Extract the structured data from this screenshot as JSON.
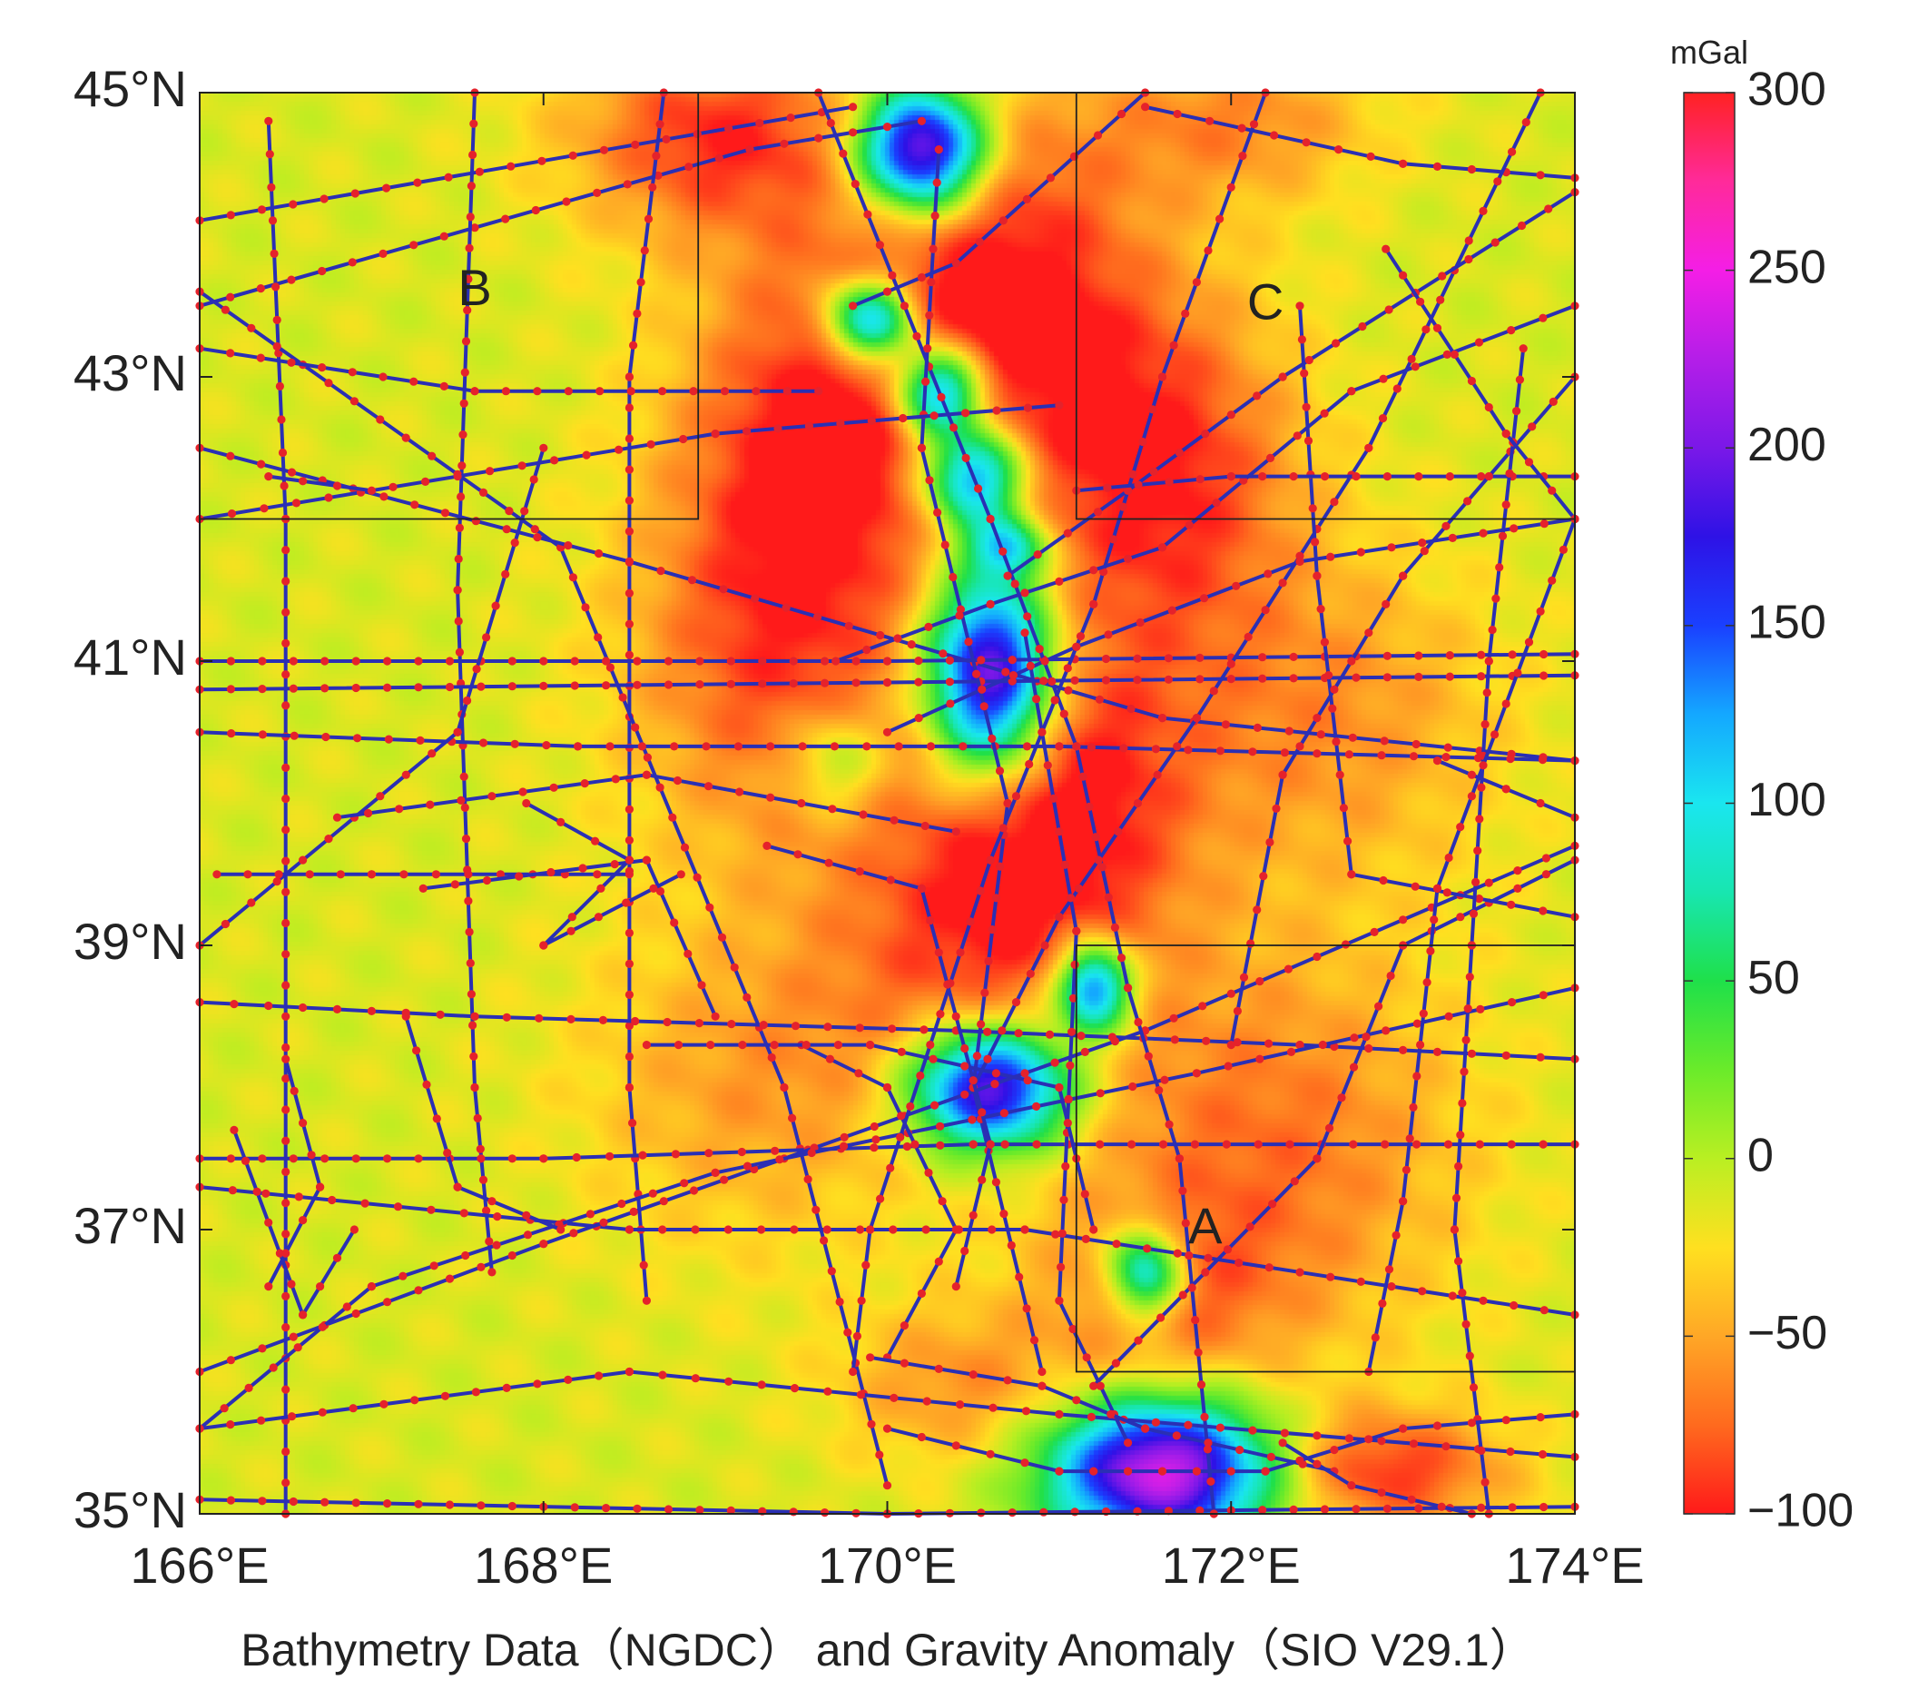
{
  "map": {
    "extent": {
      "lon_min": 166,
      "lon_max": 174,
      "lat_min": 35,
      "lat_max": 45
    },
    "x_ticks": [
      {
        "lon": 166,
        "label": "166°E"
      },
      {
        "lon": 168,
        "label": "168°E"
      },
      {
        "lon": 170,
        "label": "170°E"
      },
      {
        "lon": 172,
        "label": "172°E"
      },
      {
        "lon": 174,
        "label": "174°E"
      }
    ],
    "y_ticks": [
      {
        "lat": 45,
        "label": "45°N"
      },
      {
        "lat": 43,
        "label": "43°N"
      },
      {
        "lat": 41,
        "label": "41°N"
      },
      {
        "lat": 39,
        "label": "39°N"
      },
      {
        "lat": 37,
        "label": "37°N"
      },
      {
        "lat": 35,
        "label": "35°N"
      }
    ],
    "caption": "Bathymetry Data（NGDC） and Gravity Anomaly（SIO V29.1）",
    "track_color": "#2a2fb4",
    "point_color": "#e5222b",
    "regions": [
      {
        "label": "A",
        "lon_min": 171.1,
        "lon_max": 174.0,
        "lat_min": 36.0,
        "lat_max": 39.0,
        "label_lon": 171.85,
        "label_lat": 37.0
      },
      {
        "label": "B",
        "lon_min": 166.0,
        "lon_max": 168.9,
        "lat_min": 42.0,
        "lat_max": 45.0,
        "label_lon": 167.6,
        "label_lat": 43.6
      },
      {
        "label": "C",
        "lon_min": 171.1,
        "lon_max": 174.0,
        "lat_min": 42.0,
        "lat_max": 45.0,
        "label_lon": 172.2,
        "label_lat": 43.5
      }
    ],
    "tracks": [
      [
        [
          166.0,
          44.1
        ],
        [
          169.8,
          44.9
        ]
      ],
      [
        [
          166.0,
          43.5
        ],
        [
          169.2,
          44.6
        ],
        [
          170.2,
          44.8
        ]
      ],
      [
        [
          166.4,
          44.8
        ],
        [
          166.5,
          42.0
        ],
        [
          166.5,
          35.0
        ]
      ],
      [
        [
          167.6,
          45.0
        ],
        [
          167.5,
          41.5
        ],
        [
          167.6,
          38.0
        ],
        [
          167.7,
          36.7
        ]
      ],
      [
        [
          168.7,
          45.0
        ],
        [
          168.5,
          43.0
        ],
        [
          168.5,
          38.0
        ],
        [
          168.6,
          36.5
        ]
      ],
      [
        [
          166.0,
          43.6
        ],
        [
          168.1,
          41.8
        ],
        [
          169.4,
          38.0
        ],
        [
          170.0,
          35.2
        ]
      ],
      [
        [
          166.0,
          42.5
        ],
        [
          168.5,
          41.7
        ],
        [
          171.6,
          40.6
        ],
        [
          174.0,
          40.3
        ]
      ],
      [
        [
          166.0,
          41.0
        ],
        [
          170.0,
          41.0
        ],
        [
          174.0,
          41.05
        ]
      ],
      [
        [
          166.0,
          40.8
        ],
        [
          170.0,
          40.85
        ],
        [
          174.0,
          40.9
        ]
      ],
      [
        [
          166.0,
          40.5
        ],
        [
          168.2,
          40.4
        ],
        [
          171.0,
          40.4
        ],
        [
          174.0,
          40.3
        ]
      ],
      [
        [
          166.0,
          39.0
        ],
        [
          167.5,
          40.5
        ],
        [
          168.0,
          42.5
        ]
      ],
      [
        [
          166.1,
          39.5
        ],
        [
          167.0,
          39.5
        ],
        [
          168.5,
          39.5
        ]
      ],
      [
        [
          166.0,
          38.6
        ],
        [
          167.6,
          38.5
        ],
        [
          170.4,
          38.4
        ],
        [
          172.4,
          38.3
        ],
        [
          174.0,
          38.2
        ]
      ],
      [
        [
          166.0,
          37.5
        ],
        [
          168.0,
          37.5
        ],
        [
          170.5,
          37.6
        ],
        [
          174.0,
          37.6
        ]
      ],
      [
        [
          166.0,
          37.3
        ],
        [
          168.5,
          37.0
        ],
        [
          170.8,
          37.0
        ],
        [
          174.0,
          36.4
        ]
      ],
      [
        [
          166.0,
          36.0
        ],
        [
          168.0,
          36.9
        ],
        [
          171.5,
          38.4
        ],
        [
          174.0,
          39.7
        ]
      ],
      [
        [
          166.0,
          35.6
        ],
        [
          168.5,
          36.0
        ],
        [
          171.0,
          35.7
        ],
        [
          174.0,
          35.4
        ]
      ],
      [
        [
          166.0,
          35.1
        ],
        [
          170.0,
          35.0
        ],
        [
          174.0,
          35.05
        ]
      ],
      [
        [
          166.0,
          35.6
        ],
        [
          167.0,
          36.6
        ],
        [
          169.0,
          37.4
        ],
        [
          171.8,
          38.1
        ],
        [
          174.0,
          38.7
        ]
      ],
      [
        [
          171.2,
          35.9
        ],
        [
          172.5,
          37.5
        ],
        [
          173.0,
          39.0
        ],
        [
          174.0,
          39.6
        ]
      ],
      [
        [
          171.5,
          44.9
        ],
        [
          173.0,
          44.5
        ],
        [
          174.0,
          44.4
        ]
      ],
      [
        [
          171.5,
          45.0
        ],
        [
          170.4,
          43.8
        ],
        [
          169.8,
          43.5
        ]
      ],
      [
        [
          169.6,
          45.0
        ],
        [
          170.6,
          42.0
        ],
        [
          171.1,
          40.4
        ],
        [
          171.4,
          38.7
        ],
        [
          171.7,
          37.5
        ],
        [
          171.9,
          35.0
        ]
      ],
      [
        [
          170.3,
          44.6
        ],
        [
          170.2,
          42.5
        ],
        [
          170.7,
          40.0
        ],
        [
          170.5,
          38.0
        ],
        [
          170.9,
          36.0
        ]
      ],
      [
        [
          172.2,
          45.0
        ],
        [
          171.6,
          43.0
        ],
        [
          171.2,
          41.4
        ],
        [
          170.6,
          39.6
        ],
        [
          169.9,
          37.0
        ],
        [
          169.8,
          36.0
        ]
      ],
      [
        [
          173.8,
          45.0
        ],
        [
          172.8,
          42.5
        ],
        [
          171.8,
          40.6
        ],
        [
          171.0,
          39.2
        ],
        [
          170.5,
          38.0
        ]
      ],
      [
        [
          174.0,
          44.3
        ],
        [
          172.3,
          43.0
        ],
        [
          171.4,
          42.2
        ],
        [
          170.7,
          41.6
        ]
      ],
      [
        [
          172.4,
          43.5
        ],
        [
          172.5,
          41.6
        ],
        [
          172.7,
          39.5
        ],
        [
          174.0,
          39.2
        ]
      ],
      [
        [
          174.0,
          43.5
        ],
        [
          172.7,
          42.9
        ],
        [
          171.6,
          41.8
        ],
        [
          170.6,
          41.4
        ],
        [
          169.7,
          41.0
        ]
      ],
      [
        [
          174.0,
          42.0
        ],
        [
          172.4,
          41.7
        ],
        [
          171.1,
          41.1
        ],
        [
          170.0,
          40.5
        ]
      ],
      [
        [
          174.0,
          42.3
        ],
        [
          172.0,
          42.3
        ],
        [
          171.1,
          42.2
        ]
      ],
      [
        [
          174.0,
          43.0
        ],
        [
          173.0,
          41.6
        ],
        [
          172.3,
          40.2
        ],
        [
          172.0,
          38.3
        ]
      ],
      [
        [
          173.7,
          43.2
        ],
        [
          173.5,
          41.0
        ],
        [
          173.4,
          39.0
        ],
        [
          173.3,
          37.0
        ],
        [
          173.5,
          35.0
        ]
      ],
      [
        [
          172.9,
          43.9
        ],
        [
          173.6,
          42.6
        ],
        [
          174.0,
          42.0
        ]
      ],
      [
        [
          170.8,
          41.2
        ],
        [
          171.1,
          39.1
        ],
        [
          171.0,
          36.5
        ],
        [
          171.4,
          35.5
        ]
      ],
      [
        [
          169.3,
          39.7
        ],
        [
          170.2,
          39.4
        ],
        [
          170.6,
          37.6
        ],
        [
          170.4,
          36.6
        ]
      ],
      [
        [
          169.5,
          38.3
        ],
        [
          170.0,
          38.0
        ],
        [
          170.4,
          37.0
        ],
        [
          170.0,
          36.1
        ]
      ],
      [
        [
          166.2,
          37.7
        ],
        [
          166.6,
          36.4
        ],
        [
          166.9,
          37.0
        ]
      ],
      [
        [
          167.2,
          38.5
        ],
        [
          167.5,
          37.3
        ],
        [
          168.1,
          37.0
        ]
      ],
      [
        [
          169.9,
          36.1
        ],
        [
          170.9,
          35.9
        ],
        [
          171.5,
          35.6
        ],
        [
          172.6,
          35.3
        ]
      ],
      [
        [
          170.0,
          35.6
        ],
        [
          171.0,
          35.3
        ],
        [
          172.2,
          35.3
        ],
        [
          173.0,
          35.6
        ],
        [
          174.0,
          35.7
        ]
      ],
      [
        [
          172.3,
          35.5
        ],
        [
          172.7,
          35.2
        ],
        [
          173.4,
          35.0
        ]
      ],
      [
        [
          168.6,
          38.3
        ],
        [
          169.9,
          38.3
        ],
        [
          171.0,
          38.0
        ],
        [
          171.2,
          37.0
        ]
      ],
      [
        [
          167.3,
          39.4
        ],
        [
          168.6,
          39.6
        ],
        [
          169.0,
          38.5
        ]
      ],
      [
        [
          167.9,
          40.0
        ],
        [
          168.5,
          39.6
        ],
        [
          168.0,
          39.0
        ],
        [
          168.8,
          39.5
        ]
      ],
      [
        [
          166.8,
          39.9
        ],
        [
          168.6,
          40.2
        ],
        [
          170.4,
          39.8
        ]
      ],
      [
        [
          173.2,
          40.3
        ],
        [
          173.6,
          40.1
        ],
        [
          174.0,
          39.9
        ]
      ],
      [
        [
          166.0,
          42.0
        ],
        [
          169.0,
          42.6
        ],
        [
          171.0,
          42.8
        ]
      ],
      [
        [
          166.0,
          43.2
        ],
        [
          167.6,
          42.9
        ],
        [
          169.6,
          42.9
        ]
      ],
      [
        [
          166.4,
          42.3
        ],
        [
          167.0,
          42.2
        ]
      ],
      [
        [
          174.0,
          42.0
        ],
        [
          173.2,
          39.4
        ],
        [
          173.0,
          37.2
        ],
        [
          172.8,
          36.0
        ]
      ],
      [
        [
          166.5,
          38.2
        ],
        [
          166.7,
          37.3
        ],
        [
          166.4,
          36.6
        ]
      ]
    ]
  },
  "colorbar": {
    "unit": "mGal",
    "vmin": -100,
    "vmax": 300,
    "tick_labels": [
      {
        "value": 300,
        "label": "300"
      },
      {
        "value": 250,
        "label": "250"
      },
      {
        "value": 200,
        "label": "200"
      },
      {
        "value": 150,
        "label": "150"
      },
      {
        "value": 100,
        "label": "100"
      },
      {
        "value": 50,
        "label": "50"
      },
      {
        "value": 0,
        "label": "0"
      },
      {
        "value": -50,
        "label": "−50"
      },
      {
        "value": -100,
        "label": "−100"
      }
    ],
    "stops": [
      {
        "value": -100,
        "color": "#ff1a1a"
      },
      {
        "value": -75,
        "color": "#ff6a1e"
      },
      {
        "value": -50,
        "color": "#ffa726"
      },
      {
        "value": -25,
        "color": "#ffe020"
      },
      {
        "value": 0,
        "color": "#b9ef22"
      },
      {
        "value": 25,
        "color": "#6aeb2a"
      },
      {
        "value": 50,
        "color": "#1fe04a"
      },
      {
        "value": 75,
        "color": "#18e6b0"
      },
      {
        "value": 100,
        "color": "#1ae6ef"
      },
      {
        "value": 125,
        "color": "#14a8ff"
      },
      {
        "value": 150,
        "color": "#1a40ff"
      },
      {
        "value": 175,
        "color": "#2e12e6"
      },
      {
        "value": 200,
        "color": "#7a18e8"
      },
      {
        "value": 225,
        "color": "#b41ee8"
      },
      {
        "value": 250,
        "color": "#f41ee6"
      },
      {
        "value": 275,
        "color": "#ff2a9a"
      },
      {
        "value": 300,
        "color": "#ff2222"
      }
    ]
  },
  "gravity_field": {
    "background": -12,
    "features": [
      {
        "lon": 170.7,
        "lat": 43.6,
        "sx": 0.55,
        "sy": 0.9,
        "amp": -90
      },
      {
        "lon": 169.6,
        "lat": 42.6,
        "sx": 0.55,
        "sy": 1.0,
        "amp": -85
      },
      {
        "lon": 169.3,
        "lat": 41.0,
        "sx": 0.6,
        "sy": 1.0,
        "amp": -60
      },
      {
        "lon": 171.6,
        "lat": 42.3,
        "sx": 0.55,
        "sy": 0.9,
        "amp": -85
      },
      {
        "lon": 171.0,
        "lat": 40.0,
        "sx": 0.55,
        "sy": 0.8,
        "amp": -90
      },
      {
        "lon": 169.0,
        "lat": 44.7,
        "sx": 0.6,
        "sy": 0.5,
        "amp": -80
      },
      {
        "lon": 172.0,
        "lat": 44.8,
        "sx": 0.6,
        "sy": 0.4,
        "amp": -50
      },
      {
        "lon": 170.4,
        "lat": 39.0,
        "sx": 0.6,
        "sy": 0.8,
        "amp": -55
      },
      {
        "lon": 169.2,
        "lat": 38.0,
        "sx": 0.7,
        "sy": 0.8,
        "amp": -40
      },
      {
        "lon": 172.2,
        "lat": 37.6,
        "sx": 0.8,
        "sy": 1.0,
        "amp": -60
      },
      {
        "lon": 172.6,
        "lat": 40.6,
        "sx": 0.7,
        "sy": 0.8,
        "amp": -45
      },
      {
        "lon": 172.9,
        "lat": 35.3,
        "sx": 0.5,
        "sy": 0.3,
        "amp": -80
      },
      {
        "lon": 170.4,
        "lat": 35.9,
        "sx": 0.5,
        "sy": 0.4,
        "amp": -45
      },
      {
        "lon": 171.6,
        "lat": 36.5,
        "sx": 0.5,
        "sy": 0.5,
        "amp": -45
      },
      {
        "lon": 170.2,
        "lat": 44.6,
        "sx": 0.25,
        "sy": 0.3,
        "amp": 260
      },
      {
        "lon": 169.9,
        "lat": 43.4,
        "sx": 0.18,
        "sy": 0.2,
        "amp": 190
      },
      {
        "lon": 170.3,
        "lat": 42.9,
        "sx": 0.18,
        "sy": 0.22,
        "amp": 200
      },
      {
        "lon": 170.5,
        "lat": 42.3,
        "sx": 0.2,
        "sy": 0.25,
        "amp": 190
      },
      {
        "lon": 170.7,
        "lat": 41.8,
        "sx": 0.15,
        "sy": 0.15,
        "amp": 120
      },
      {
        "lon": 170.6,
        "lat": 40.9,
        "sx": 0.25,
        "sy": 0.5,
        "amp": 260
      },
      {
        "lon": 169.7,
        "lat": 40.3,
        "sx": 0.2,
        "sy": 0.25,
        "amp": 60
      },
      {
        "lon": 171.2,
        "lat": 38.7,
        "sx": 0.15,
        "sy": 0.22,
        "amp": 200
      },
      {
        "lon": 170.6,
        "lat": 38.0,
        "sx": 0.32,
        "sy": 0.3,
        "amp": 240
      },
      {
        "lon": 171.5,
        "lat": 36.7,
        "sx": 0.15,
        "sy": 0.22,
        "amp": 160
      },
      {
        "lon": 171.6,
        "lat": 35.3,
        "sx": 0.45,
        "sy": 0.35,
        "amp": 260
      }
    ]
  }
}
